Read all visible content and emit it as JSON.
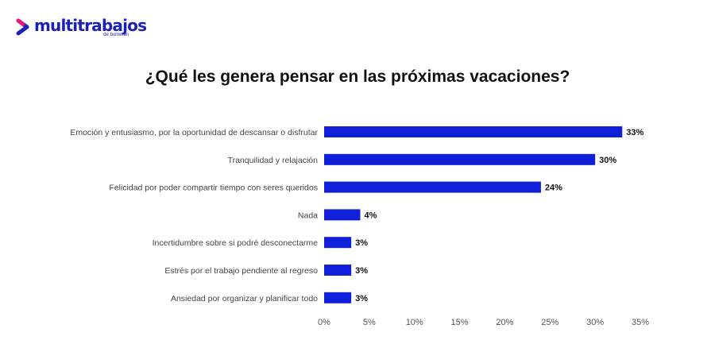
{
  "brand": {
    "name": "multitrabajos",
    "tagline": "de bumeran",
    "color": "#1a1fb5"
  },
  "chart_data": {
    "type": "bar",
    "orientation": "horizontal",
    "title": "¿Qué les genera pensar en las próximas vacaciones?",
    "categories": [
      "Emoción y entusiasmo, por la oportunidad de descansar o disfrutar",
      "Tranquilidad y relajación",
      "Felicidad por poder compartir tiempo con seres queridos",
      "Nada",
      "Incertidumbre sobre si podré desconectarme",
      "Estrés por el trabajo pendiente al regreso",
      "Ansiedad por organizar y planificar todo"
    ],
    "values": [
      33,
      30,
      24,
      4,
      3,
      3,
      3
    ],
    "value_labels": [
      "33%",
      "30%",
      "24%",
      "4%",
      "3%",
      "3%",
      "3%"
    ],
    "xlim": [
      0,
      35
    ],
    "xticks": [
      0,
      5,
      10,
      15,
      20,
      25,
      30,
      35
    ],
    "xtick_labels": [
      "0%",
      "5%",
      "10%",
      "15%",
      "20%",
      "25%",
      "30%",
      "35%"
    ],
    "bar_color": "#1020d8",
    "xlabel": "",
    "ylabel": "",
    "grid": false,
    "legend": "none"
  }
}
